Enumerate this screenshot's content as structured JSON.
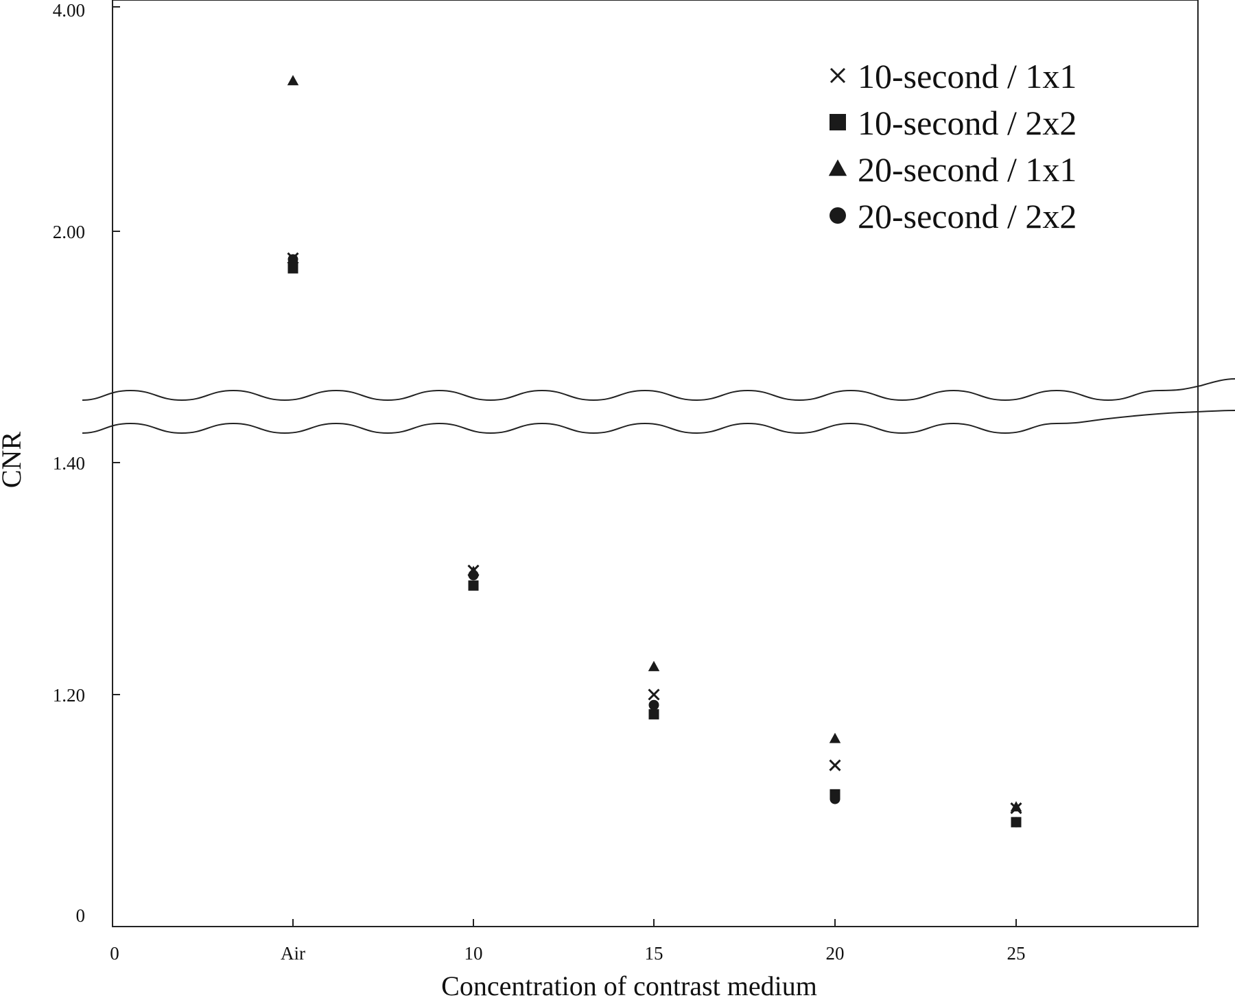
{
  "chart_data": {
    "type": "scatter",
    "title": "",
    "xlabel": "Concentration of contrast medium",
    "ylabel": "CNR",
    "x_ticks": [
      "0",
      "Air",
      "10",
      "15",
      "20",
      "25"
    ],
    "categories": [
      "Air",
      "10",
      "15",
      "20",
      "25"
    ],
    "y_axis_broken": true,
    "y_ticks_lower": [
      "0",
      "1.20",
      "1.40"
    ],
    "y_ticks_upper": [
      "2.00",
      "4.00"
    ],
    "ylim_lower": [
      1.0,
      1.45
    ],
    "ylim_upper": [
      1.6,
      4.0
    ],
    "grid": false,
    "legend_position": "top-right",
    "series": [
      {
        "name": "10-second / 1x1",
        "marker": "x",
        "values": [
          1.76,
          1.307,
          1.2,
          1.139,
          1.102
        ]
      },
      {
        "name": "10-second / 2x2",
        "marker": "square",
        "values": [
          1.67,
          1.294,
          1.183,
          1.114,
          1.09
        ]
      },
      {
        "name": "20-second / 1x1",
        "marker": "triangle",
        "values": [
          3.34,
          1.306,
          1.224,
          1.162,
          1.103
        ]
      },
      {
        "name": "20-second / 2x2",
        "marker": "circle",
        "values": [
          1.75,
          1.303,
          1.191,
          1.11,
          1.09
        ]
      }
    ],
    "colors": {
      "markers": "#1a1a1a",
      "axes": "#222222",
      "background": "#ffffff"
    }
  }
}
